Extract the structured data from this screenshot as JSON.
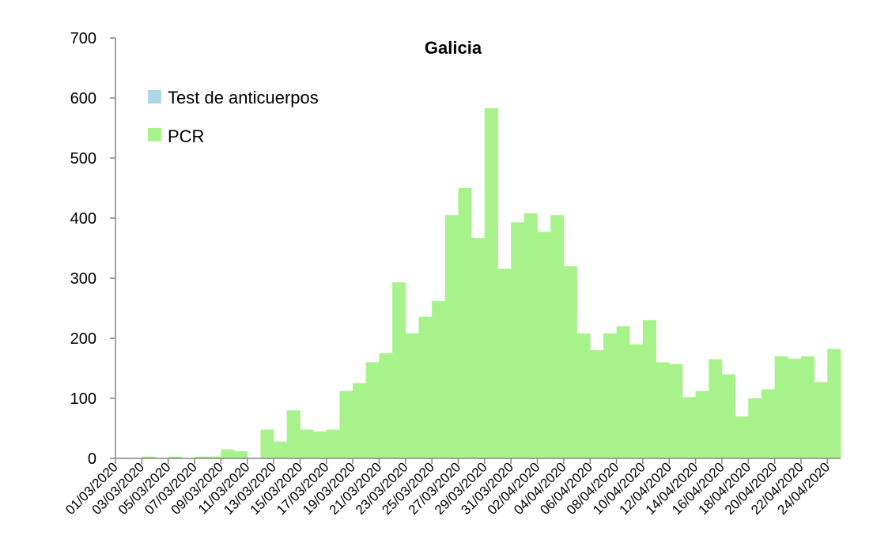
{
  "chart_data": {
    "type": "bar",
    "title": "Galicia",
    "xlabel": "",
    "ylabel": "",
    "ylim": [
      0,
      700
    ],
    "yticks": [
      0,
      100,
      200,
      300,
      400,
      500,
      600,
      700
    ],
    "legend_position": "top-left",
    "grid": false,
    "x_tick_labels": [
      "01/03/2020",
      "03/03/2020",
      "05/03/2020",
      "07/03/2020",
      "09/03/2020",
      "11/03/2020",
      "13/03/2020",
      "15/03/2020",
      "17/03/2020",
      "19/03/2020",
      "21/03/2020",
      "23/03/2020",
      "25/03/2020",
      "27/03/2020",
      "29/03/2020",
      "31/03/2020",
      "02/04/2020",
      "04/04/2020",
      "06/04/2020",
      "08/04/2020",
      "10/04/2020",
      "12/04/2020",
      "14/04/2020",
      "16/04/2020",
      "18/04/2020",
      "20/04/2020",
      "22/04/2020",
      "24/04/2020"
    ],
    "categories": [
      "01/03/2020",
      "02/03/2020",
      "03/03/2020",
      "04/03/2020",
      "05/03/2020",
      "06/03/2020",
      "07/03/2020",
      "08/03/2020",
      "09/03/2020",
      "10/03/2020",
      "11/03/2020",
      "12/03/2020",
      "13/03/2020",
      "14/03/2020",
      "15/03/2020",
      "16/03/2020",
      "17/03/2020",
      "18/03/2020",
      "19/03/2020",
      "20/03/2020",
      "21/03/2020",
      "22/03/2020",
      "23/03/2020",
      "24/03/2020",
      "25/03/2020",
      "26/03/2020",
      "27/03/2020",
      "28/03/2020",
      "29/03/2020",
      "30/03/2020",
      "31/03/2020",
      "01/04/2020",
      "02/04/2020",
      "03/04/2020",
      "04/04/2020",
      "05/04/2020",
      "06/04/2020",
      "07/04/2020",
      "08/04/2020",
      "09/04/2020",
      "10/04/2020",
      "11/04/2020",
      "12/04/2020",
      "13/04/2020",
      "14/04/2020",
      "15/04/2020",
      "16/04/2020",
      "17/04/2020",
      "18/04/2020",
      "19/04/2020",
      "20/04/2020",
      "21/04/2020",
      "22/04/2020",
      "23/04/2020",
      "24/04/2020"
    ],
    "series": [
      {
        "name": "Test de anticuerpos",
        "color": "#add8e6",
        "values": [
          0,
          0,
          0,
          0,
          0,
          0,
          0,
          0,
          0,
          0,
          0,
          0,
          0,
          0,
          0,
          0,
          0,
          0,
          0,
          0,
          0,
          0,
          0,
          0,
          0,
          0,
          0,
          0,
          0,
          0,
          0,
          0,
          0,
          0,
          0,
          0,
          0,
          0,
          0,
          0,
          0,
          0,
          0,
          0,
          0,
          0,
          0,
          0,
          0,
          0,
          0,
          0,
          0,
          0,
          0
        ]
      },
      {
        "name": "PCR",
        "color": "#a8f28c",
        "values": [
          0,
          0,
          3,
          0,
          3,
          0,
          3,
          3,
          15,
          12,
          0,
          48,
          28,
          80,
          48,
          45,
          48,
          112,
          125,
          160,
          175,
          293,
          208,
          236,
          262,
          405,
          450,
          367,
          583,
          316,
          393,
          408,
          377,
          405,
          320,
          208,
          180,
          208,
          220,
          190,
          230,
          160,
          157,
          102,
          112,
          165,
          140,
          70,
          100,
          115,
          170,
          166,
          170,
          127,
          182
        ]
      }
    ]
  }
}
